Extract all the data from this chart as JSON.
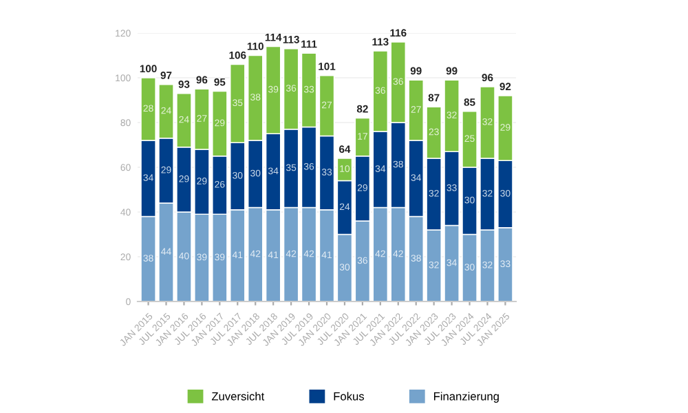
{
  "chart_data": {
    "type": "bar",
    "stacked": true,
    "data_labels": true,
    "grid": "y",
    "legend": "bottom",
    "categories": [
      "JAN 2015",
      "JUL 2015",
      "JAN 2016",
      "JUL 2016",
      "JAN 2017",
      "JUL 2017",
      "JAN 2018",
      "JUL 2018",
      "JAN 2019",
      "JUL 2019",
      "JAN 2020",
      "JUL 2020",
      "JAN 2021",
      "JUL 2021",
      "JAN 2022",
      "JUL 2022",
      "JAN 2023",
      "JUL 2023",
      "JAN 2024",
      "JUL 2024",
      "JAN 2025"
    ],
    "series": [
      {
        "name": "Finanzierung",
        "color": "#75a3cc",
        "values": [
          38,
          44,
          40,
          39,
          39,
          41,
          42,
          41,
          42,
          42,
          41,
          30,
          36,
          42,
          42,
          38,
          32,
          34,
          30,
          32,
          33
        ]
      },
      {
        "name": "Fokus",
        "color": "#003f8a",
        "values": [
          34,
          29,
          29,
          29,
          26,
          30,
          30,
          34,
          35,
          36,
          33,
          24,
          29,
          34,
          38,
          34,
          32,
          33,
          30,
          32,
          30
        ]
      },
      {
        "name": "Zuversicht",
        "color": "#7dc242",
        "values": [
          28,
          24,
          24,
          27,
          29,
          35,
          38,
          39,
          36,
          33,
          27,
          10,
          17,
          36,
          36,
          27,
          23,
          32,
          25,
          32,
          29
        ]
      }
    ],
    "totals": [
      "100",
      "97",
      "93",
      "96",
      "95",
      "106",
      "110",
      "114",
      "113",
      "111",
      "101",
      "64",
      "82",
      "113",
      "116",
      "99",
      "87",
      "99",
      "85",
      "96",
      "92"
    ],
    "ylim": [
      0,
      120
    ],
    "yticks": [
      0,
      20,
      40,
      60,
      80,
      100,
      120
    ]
  }
}
